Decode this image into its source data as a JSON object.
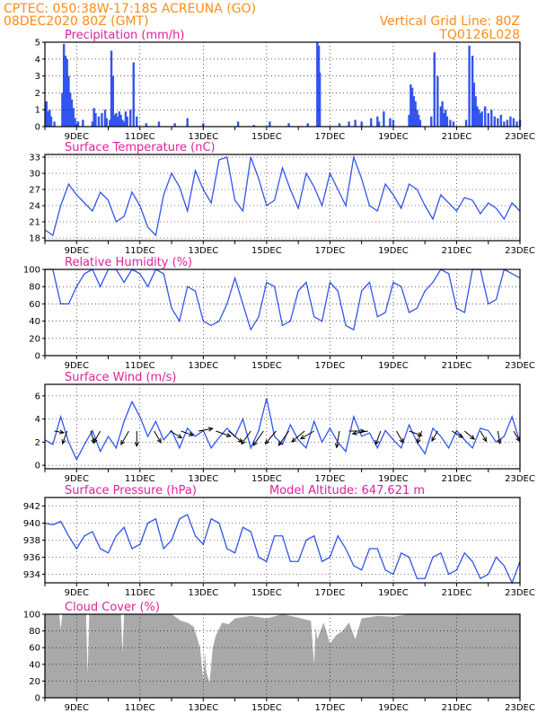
{
  "header": {
    "line1_left": "CPTEC:   050:38W-17:18S   ACREUNA (GO)",
    "line2_left": "08DEC2020 80Z (GMT)",
    "line2_right": "Vertical Grid Line: 80Z",
    "line3_right": "TQ0126L028"
  },
  "x_labels": [
    "9DEC",
    "11DEC",
    "13DEC",
    "15DEC",
    "17DEC",
    "19DEC",
    "21DEC",
    "23DEC"
  ],
  "colors": {
    "line": "#3355ee",
    "bar": "#3355ee",
    "cloud": "#a9a9a9",
    "title": "#e0209a",
    "header": "#ff8c1a"
  },
  "chart_data": [
    {
      "type": "bar",
      "title": "Precipitation (mm/h)",
      "xlim": [
        8.0,
        23.0
      ],
      "ylim": [
        0,
        5
      ],
      "yticks": [
        0,
        1,
        2,
        3,
        4,
        5
      ],
      "x": [
        8.05,
        8.1,
        8.15,
        8.2,
        8.3,
        8.55,
        8.6,
        8.62,
        8.65,
        8.7,
        8.75,
        8.8,
        8.85,
        8.9,
        8.95,
        9.0,
        9.05,
        9.2,
        9.5,
        9.55,
        9.6,
        9.7,
        9.8,
        9.9,
        9.95,
        10.05,
        10.1,
        10.15,
        10.2,
        10.25,
        10.3,
        10.35,
        10.4,
        10.45,
        10.5,
        10.55,
        10.6,
        10.7,
        10.8,
        10.9,
        11.2,
        11.6,
        12.1,
        12.5,
        13.0,
        14.1,
        14.6,
        15.1,
        15.7,
        16.3,
        16.6,
        16.65,
        16.68,
        17.3,
        17.6,
        17.8,
        18.0,
        18.3,
        18.5,
        18.55,
        18.7,
        18.9,
        19.0,
        19.5,
        19.55,
        19.6,
        19.65,
        19.7,
        19.75,
        19.8,
        19.85,
        20.2,
        20.3,
        20.4,
        20.5,
        20.55,
        20.6,
        20.65,
        20.7,
        20.8,
        20.9,
        21.3,
        21.4,
        21.5,
        21.55,
        21.6,
        21.65,
        21.7,
        21.75,
        21.8,
        21.9,
        22.0,
        22.1,
        22.2,
        22.3,
        22.4,
        22.5,
        22.6,
        22.7,
        22.8,
        22.9,
        23.0
      ],
      "values": [
        1.5,
        0.9,
        1.0,
        0.6,
        0.3,
        2.0,
        4.9,
        3.5,
        4.2,
        4.0,
        3.0,
        2.0,
        1.6,
        1.1,
        0.5,
        0.2,
        0.3,
        0.4,
        0.3,
        1.1,
        0.8,
        0.6,
        0.8,
        1.0,
        0.5,
        0.4,
        4.5,
        3.0,
        0.7,
        0.8,
        0.6,
        0.9,
        0.7,
        0.4,
        0.3,
        0.9,
        0.6,
        1.0,
        3.8,
        0.6,
        0.2,
        0.3,
        0.2,
        0.5,
        0.2,
        0.3,
        0.1,
        0.3,
        0.2,
        0.2,
        5.0,
        4.8,
        3.2,
        0.2,
        0.3,
        0.4,
        0.3,
        0.5,
        0.6,
        0.3,
        0.9,
        0.5,
        0.4,
        0.7,
        2.5,
        2.3,
        1.8,
        1.5,
        1.0,
        0.7,
        0.4,
        0.6,
        4.4,
        3.0,
        1.2,
        1.5,
        0.8,
        1.0,
        0.6,
        0.4,
        0.3,
        0.4,
        4.8,
        4.2,
        2.6,
        1.8,
        1.2,
        1.0,
        0.8,
        0.9,
        1.2,
        0.8,
        1.0,
        0.6,
        0.5,
        0.7,
        0.3,
        0.4,
        0.6,
        0.5,
        0.3,
        0.4
      ]
    },
    {
      "type": "line",
      "title": "Surface Temperature (nC)",
      "xlim": [
        8.0,
        23.0
      ],
      "ylim": [
        17.5,
        33.5
      ],
      "yticks": [
        18,
        21,
        24,
        27,
        30,
        33
      ],
      "x": [
        8.0,
        8.25,
        8.5,
        8.75,
        9.0,
        9.25,
        9.5,
        9.75,
        10.0,
        10.25,
        10.5,
        10.75,
        11.0,
        11.25,
        11.5,
        11.75,
        12.0,
        12.25,
        12.5,
        12.75,
        13.0,
        13.25,
        13.5,
        13.75,
        14.0,
        14.25,
        14.5,
        14.75,
        15.0,
        15.25,
        15.5,
        15.75,
        16.0,
        16.25,
        16.5,
        16.75,
        17.0,
        17.25,
        17.5,
        17.75,
        18.0,
        18.25,
        18.5,
        18.75,
        19.0,
        19.25,
        19.5,
        19.75,
        20.0,
        20.25,
        20.5,
        20.75,
        21.0,
        21.25,
        21.5,
        21.75,
        22.0,
        22.25,
        22.5,
        22.75,
        23.0
      ],
      "values": [
        19.5,
        18.5,
        24.0,
        28.0,
        26.0,
        24.5,
        23.0,
        26.5,
        25.0,
        21.0,
        22.0,
        26.5,
        24.0,
        20.0,
        18.5,
        26.0,
        30.0,
        27.5,
        23.0,
        30.5,
        27.0,
        24.5,
        32.5,
        33.0,
        25.0,
        23.0,
        33.0,
        29.0,
        24.0,
        25.0,
        31.0,
        27.0,
        23.5,
        30.0,
        27.5,
        24.0,
        30.0,
        27.0,
        24.0,
        33.0,
        29.0,
        24.0,
        23.0,
        28.0,
        26.0,
        23.5,
        28.0,
        27.0,
        24.0,
        21.5,
        26.0,
        24.5,
        23.0,
        25.5,
        25.0,
        22.5,
        24.5,
        23.5,
        21.5,
        24.5,
        23.0
      ]
    },
    {
      "type": "line",
      "title": "Relative Humidity (%)",
      "xlim": [
        8.0,
        23.0
      ],
      "ylim": [
        0,
        100
      ],
      "yticks": [
        0,
        20,
        40,
        60,
        80,
        100
      ],
      "x": [
        8.0,
        8.25,
        8.5,
        8.75,
        9.0,
        9.25,
        9.5,
        9.75,
        10.0,
        10.25,
        10.5,
        10.75,
        11.0,
        11.25,
        11.5,
        11.75,
        12.0,
        12.25,
        12.5,
        12.75,
        13.0,
        13.25,
        13.5,
        13.75,
        14.0,
        14.25,
        14.5,
        14.75,
        15.0,
        15.25,
        15.5,
        15.75,
        16.0,
        16.25,
        16.5,
        16.75,
        17.0,
        17.25,
        17.5,
        17.75,
        18.0,
        18.25,
        18.5,
        18.75,
        19.0,
        19.25,
        19.5,
        19.75,
        20.0,
        20.25,
        20.5,
        20.75,
        21.0,
        21.25,
        21.5,
        21.75,
        22.0,
        22.25,
        22.5,
        22.75,
        23.0
      ],
      "values": [
        100,
        100,
        60,
        60,
        80,
        95,
        100,
        80,
        100,
        100,
        85,
        100,
        95,
        80,
        100,
        95,
        55,
        40,
        80,
        75,
        40,
        35,
        40,
        60,
        90,
        60,
        30,
        45,
        85,
        80,
        35,
        40,
        75,
        85,
        45,
        40,
        85,
        75,
        35,
        30,
        75,
        85,
        45,
        50,
        85,
        80,
        50,
        55,
        75,
        85,
        100,
        95,
        55,
        50,
        100,
        100,
        60,
        65,
        100,
        95,
        90
      ]
    },
    {
      "type": "line",
      "title": "Surface Wind (m/s)",
      "xlim": [
        8.0,
        23.0
      ],
      "ylim": [
        -0.3,
        7.0
      ],
      "yticks": [
        0,
        2,
        4,
        6
      ],
      "x": [
        8.0,
        8.25,
        8.5,
        8.75,
        9.0,
        9.25,
        9.5,
        9.75,
        10.0,
        10.25,
        10.5,
        10.75,
        11.0,
        11.25,
        11.5,
        11.75,
        12.0,
        12.25,
        12.5,
        12.75,
        13.0,
        13.25,
        13.5,
        13.75,
        14.0,
        14.25,
        14.5,
        14.75,
        15.0,
        15.25,
        15.5,
        15.75,
        16.0,
        16.25,
        16.5,
        16.75,
        17.0,
        17.25,
        17.5,
        17.75,
        18.0,
        18.25,
        18.5,
        18.75,
        19.0,
        19.25,
        19.5,
        19.75,
        20.0,
        20.25,
        20.5,
        20.75,
        21.0,
        21.25,
        21.5,
        21.75,
        22.0,
        22.25,
        22.5,
        22.75,
        23.0
      ],
      "values": [
        2.2,
        1.8,
        4.2,
        2.0,
        0.5,
        1.8,
        3.0,
        1.2,
        2.5,
        1.5,
        3.8,
        5.5,
        4.2,
        2.5,
        3.8,
        2.2,
        3.0,
        1.5,
        3.2,
        2.5,
        3.0,
        1.5,
        2.4,
        3.2,
        2.5,
        4.0,
        1.5,
        3.0,
        5.8,
        2.5,
        1.8,
        3.5,
        2.2,
        1.5,
        3.8,
        2.0,
        3.2,
        2.0,
        1.2,
        4.2,
        2.5,
        2.8,
        1.5,
        3.0,
        2.2,
        1.5,
        3.5,
        2.0,
        1.0,
        3.2,
        2.5,
        1.5,
        3.0,
        2.2,
        1.5,
        3.2,
        3.0,
        2.0,
        2.5,
        4.2,
        2.0
      ],
      "arrows": [
        {
          "x": 8.3,
          "speed": 1.0,
          "to_deg": 100
        },
        {
          "x": 8.7,
          "speed": 2.0,
          "to_deg": 200
        },
        {
          "x": 9.45,
          "speed": 1.8,
          "to_deg": 165
        },
        {
          "x": 9.75,
          "speed": 2.0,
          "to_deg": 210
        },
        {
          "x": 10.65,
          "speed": 2.5,
          "to_deg": 210
        },
        {
          "x": 10.9,
          "speed": 2.4,
          "to_deg": 180
        },
        {
          "x": 11.45,
          "speed": 2.0,
          "to_deg": 150
        },
        {
          "x": 11.95,
          "speed": 2.0,
          "to_deg": 120
        },
        {
          "x": 12.3,
          "speed": 1.8,
          "to_deg": 110
        },
        {
          "x": 12.85,
          "speed": 2.2,
          "to_deg": 80
        },
        {
          "x": 13.4,
          "speed": 2.5,
          "to_deg": 110
        },
        {
          "x": 13.8,
          "speed": 3.0,
          "to_deg": 130
        },
        {
          "x": 14.5,
          "speed": 2.6,
          "to_deg": 215
        },
        {
          "x": 14.9,
          "speed": 3.0,
          "to_deg": 215
        },
        {
          "x": 15.3,
          "speed": 2.8,
          "to_deg": 220
        },
        {
          "x": 15.7,
          "speed": 3.0,
          "to_deg": 215
        },
        {
          "x": 16.2,
          "speed": 2.8,
          "to_deg": 230
        },
        {
          "x": 16.5,
          "speed": 2.5,
          "to_deg": 240
        },
        {
          "x": 17.3,
          "speed": 2.8,
          "to_deg": 190
        },
        {
          "x": 17.6,
          "speed": 2.5,
          "to_deg": 90
        },
        {
          "x": 18.2,
          "speed": 2.5,
          "to_deg": 260
        },
        {
          "x": 18.6,
          "speed": 2.2,
          "to_deg": 200
        },
        {
          "x": 19.1,
          "speed": 2.0,
          "to_deg": 150
        },
        {
          "x": 19.5,
          "speed": 2.0,
          "to_deg": 110
        },
        {
          "x": 19.9,
          "speed": 1.8,
          "to_deg": 200
        },
        {
          "x": 20.4,
          "speed": 1.5,
          "to_deg": 210
        },
        {
          "x": 20.85,
          "speed": 1.8,
          "to_deg": 120
        },
        {
          "x": 21.25,
          "speed": 1.8,
          "to_deg": 130
        },
        {
          "x": 21.75,
          "speed": 1.6,
          "to_deg": 150
        },
        {
          "x": 22.3,
          "speed": 1.8,
          "to_deg": 170
        },
        {
          "x": 22.8,
          "speed": 1.6,
          "to_deg": 150
        }
      ]
    },
    {
      "type": "line",
      "title": "Surface Pressure (hPa)",
      "annotation": "Model Altitude: 647.621 m",
      "xlim": [
        8.0,
        23.0
      ],
      "ylim": [
        933.0,
        943.0
      ],
      "yticks": [
        934,
        936,
        938,
        940,
        942
      ],
      "x": [
        8.0,
        8.25,
        8.5,
        8.75,
        9.0,
        9.25,
        9.5,
        9.75,
        10.0,
        10.25,
        10.5,
        10.75,
        11.0,
        11.25,
        11.5,
        11.75,
        12.0,
        12.25,
        12.5,
        12.75,
        13.0,
        13.25,
        13.5,
        13.75,
        14.0,
        14.25,
        14.5,
        14.75,
        15.0,
        15.25,
        15.5,
        15.75,
        16.0,
        16.25,
        16.5,
        16.75,
        17.0,
        17.25,
        17.5,
        17.75,
        18.0,
        18.25,
        18.5,
        18.75,
        19.0,
        19.25,
        19.5,
        19.75,
        20.0,
        20.25,
        20.5,
        20.75,
        21.0,
        21.25,
        21.5,
        21.75,
        22.0,
        22.25,
        22.5,
        22.75,
        23.0
      ],
      "values": [
        940.0,
        939.8,
        940.2,
        938.5,
        937.0,
        938.5,
        939.0,
        937.0,
        936.5,
        938.5,
        939.5,
        937.0,
        937.5,
        940.0,
        940.5,
        937.0,
        938.0,
        940.5,
        941.0,
        938.5,
        937.5,
        940.5,
        940.0,
        937.0,
        936.5,
        939.5,
        939.0,
        936.0,
        935.5,
        938.5,
        938.5,
        935.5,
        935.5,
        938.0,
        938.5,
        935.5,
        936.0,
        938.5,
        937.0,
        935.0,
        934.5,
        937.0,
        937.0,
        934.5,
        934.0,
        936.5,
        936.0,
        933.5,
        933.5,
        936.0,
        936.5,
        934.0,
        934.5,
        936.5,
        935.5,
        933.5,
        934.0,
        936.0,
        935.0,
        933.0,
        935.5
      ]
    },
    {
      "type": "area",
      "title": "Cloud Cover (%)",
      "xlim": [
        8.0,
        23.0
      ],
      "ylim": [
        0,
        100
      ],
      "yticks": [
        0,
        20,
        40,
        60,
        80,
        100
      ],
      "x": [
        8.0,
        8.45,
        8.5,
        8.55,
        9.3,
        9.35,
        9.4,
        10.4,
        10.45,
        10.5,
        12.0,
        12.3,
        12.5,
        12.7,
        12.9,
        12.95,
        13.0,
        13.05,
        13.1,
        13.2,
        13.3,
        13.4,
        13.6,
        13.8,
        14.0,
        14.5,
        15.0,
        15.5,
        16.0,
        16.4,
        16.5,
        16.55,
        16.6,
        16.8,
        17.0,
        17.2,
        17.4,
        17.6,
        17.8,
        18.0,
        18.5,
        19.0,
        19.5,
        20.0,
        20.5,
        21.0,
        21.5,
        22.0,
        22.5,
        23.0
      ],
      "values": [
        100,
        100,
        82,
        100,
        100,
        28,
        100,
        100,
        55,
        100,
        100,
        92,
        90,
        85,
        60,
        40,
        20,
        55,
        30,
        18,
        60,
        75,
        90,
        88,
        95,
        98,
        95,
        100,
        96,
        92,
        40,
        85,
        70,
        90,
        65,
        75,
        80,
        90,
        70,
        95,
        98,
        97,
        100,
        100,
        100,
        100,
        100,
        100,
        100,
        100
      ]
    }
  ]
}
